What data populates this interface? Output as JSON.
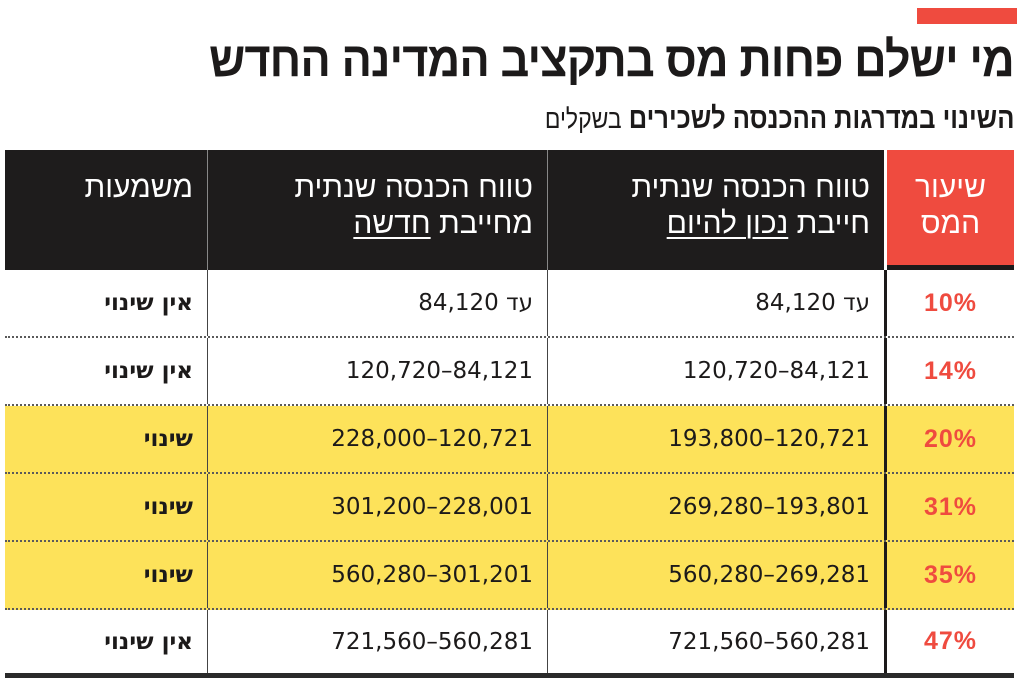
{
  "header": {
    "title": "מי ישלם פחות מס בתקציב המדינה החדש",
    "subtitle_bold": "השינוי במדרגות ההכנסה לשכירים",
    "subtitle_light": "בשקלים"
  },
  "colors": {
    "accent": "#ef4b3f",
    "header_bg": "#1e1c1c",
    "highlight_row": "#fde25a",
    "text": "#1c1a1a"
  },
  "table": {
    "columns": {
      "rate": {
        "line1": "שיעור",
        "line2": "המס"
      },
      "current": {
        "line1": "טווח הכנסה שנתית",
        "line2_plain": "חייבת ",
        "line2_underlined": "נכון להיום"
      },
      "new": {
        "line1": "טווח הכנסה שנתית",
        "line2_plain": "מחייבת ",
        "line2_underlined": "חדשה"
      },
      "meaning": {
        "line1": "משמעות"
      }
    },
    "rows": [
      {
        "rate": "10%",
        "current": "עד 84,120",
        "new": "עד 84,120",
        "meaning": "אין שינוי",
        "changed": false
      },
      {
        "rate": "14%",
        "current": "120,720–84,121",
        "new": "120,720–84,121",
        "meaning": "אין שינוי",
        "changed": false
      },
      {
        "rate": "20%",
        "current": "193,800–120,721",
        "new": "228,000–120,721",
        "meaning": "שינוי",
        "changed": true
      },
      {
        "rate": "31%",
        "current": "269,280–193,801",
        "new": "301,200–228,001",
        "meaning": "שינוי",
        "changed": true
      },
      {
        "rate": "35%",
        "current": "560,280–269,281",
        "new": "560,280–301,201",
        "meaning": "שינוי",
        "changed": true
      },
      {
        "rate": "47%",
        "current": "721,560–560,281",
        "new": "721,560–560,281",
        "meaning": "אין שינוי",
        "changed": false
      }
    ]
  }
}
